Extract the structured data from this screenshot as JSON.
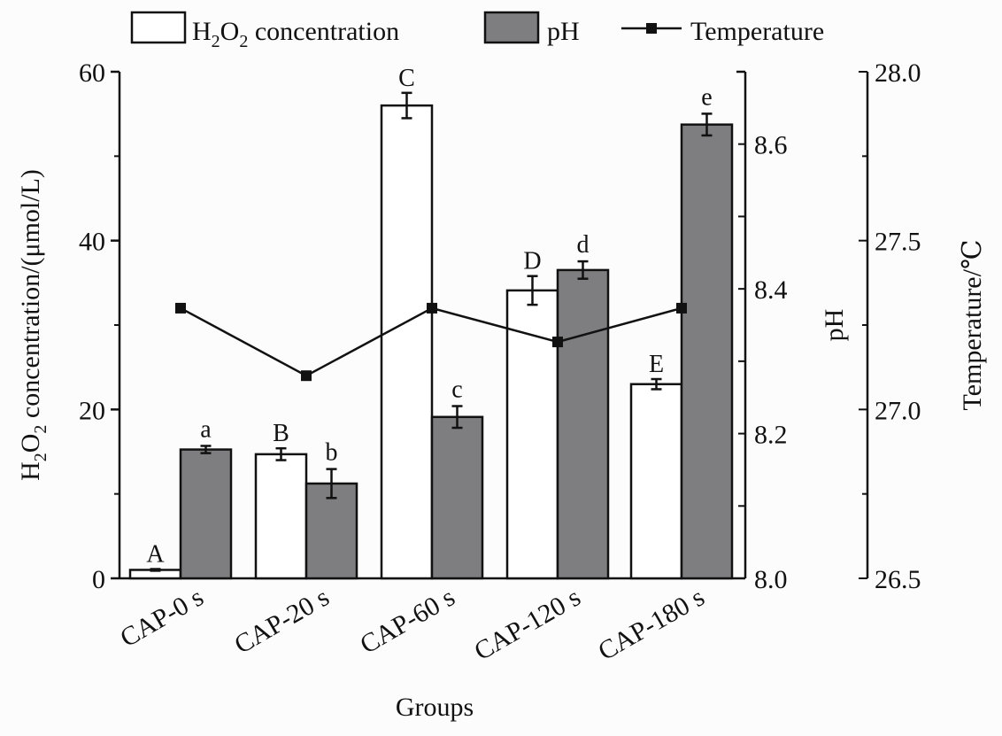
{
  "chart_data": {
    "type": "bar",
    "title": "",
    "xlabel": "Groups",
    "categories": [
      "CAP-0 s",
      "CAP-20 s",
      "CAP-60 s",
      "CAP-120 s",
      "CAP-180 s"
    ],
    "legend": {
      "placement": "top",
      "entries": [
        {
          "label_main": "H",
          "sub1": "2",
          "mid": "O",
          "sub2": "2",
          "label_rest": " concentration",
          "style": "white-bar"
        },
        {
          "label": "pH",
          "style": "grey-bar"
        },
        {
          "label": "Temperature",
          "style": "line-square-marker"
        }
      ]
    },
    "axes": {
      "left": {
        "label_parts": [
          "H",
          "2",
          "O",
          "2",
          " concentration/(μmol/L)"
        ],
        "ylim": [
          0,
          60
        ],
        "ticks": [
          0,
          20,
          40,
          60
        ],
        "tick_labels": [
          "0",
          "20",
          "40",
          "60"
        ]
      },
      "right_ph": {
        "label": "pH",
        "ylim": [
          8.0,
          8.7
        ],
        "ticks": [
          8.0,
          8.2,
          8.4,
          8.6
        ],
        "tick_labels": [
          "8.0",
          "8.2",
          "8.4",
          "8.6"
        ]
      },
      "right_temp": {
        "label": "Temperature/℃",
        "ylim": [
          26.5,
          28.0
        ],
        "ticks": [
          26.5,
          27.0,
          27.5,
          28.0
        ],
        "tick_labels": [
          "26.5",
          "27.0",
          "27.5",
          "28.0"
        ]
      }
    },
    "series": [
      {
        "name": "H2O2 concentration",
        "axis": "left",
        "kind": "bar",
        "values": [
          1.0,
          14.7,
          56.0,
          34.1,
          23.0
        ],
        "errors": [
          0.1,
          0.7,
          1.5,
          1.7,
          0.6
        ],
        "letters": [
          "A",
          "B",
          "C",
          "D",
          "E"
        ]
      },
      {
        "name": "pH",
        "axis": "right_ph",
        "kind": "bar",
        "values": [
          8.178,
          8.131,
          8.223,
          8.426,
          8.627
        ],
        "errors": [
          0.005,
          0.02,
          0.015,
          0.012,
          0.015
        ],
        "letters": [
          "a",
          "b",
          "c",
          "d",
          "e"
        ]
      },
      {
        "name": "Temperature",
        "axis": "right_temp",
        "kind": "line",
        "values": [
          27.3,
          27.1,
          27.3,
          27.2,
          27.3
        ]
      }
    ],
    "grid": false,
    "colors": {
      "h2o2_fill": "#ffffff",
      "ph_fill": "#7e7e81",
      "line": "#111111",
      "background": "#fcfcfc"
    }
  }
}
